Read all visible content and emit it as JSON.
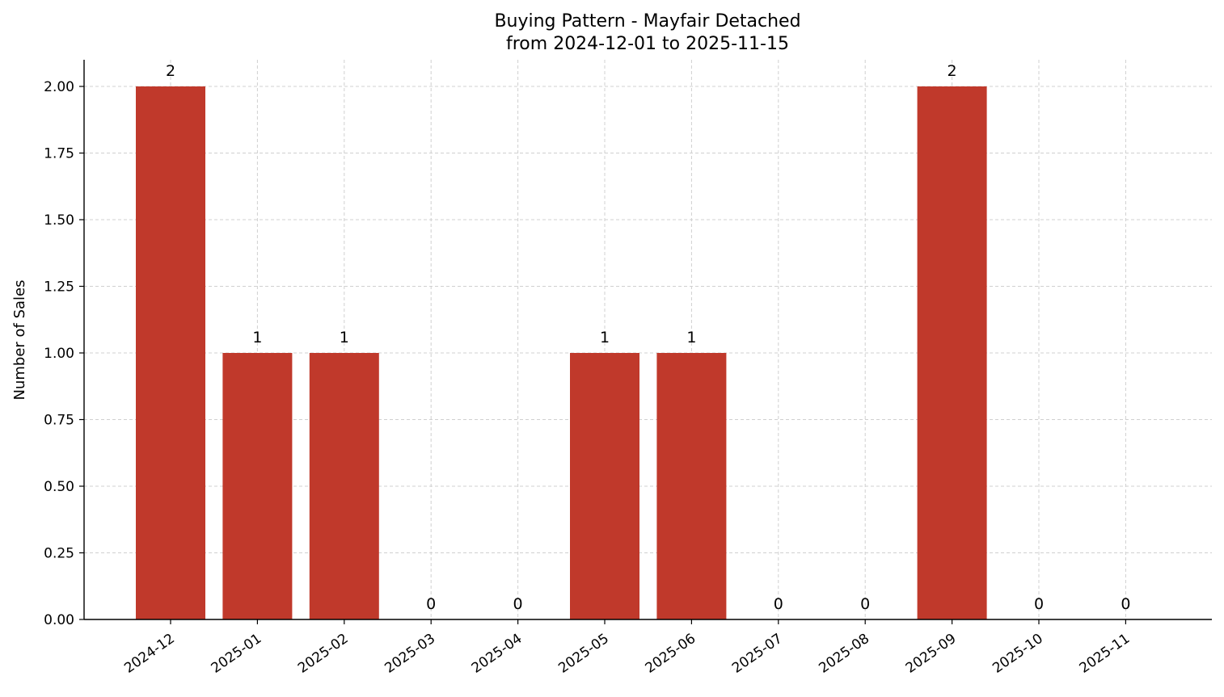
{
  "chart_data": {
    "type": "bar",
    "title": "Buying Pattern - Mayfair Detached",
    "subtitle": "from 2024-12-01 to 2025-11-15",
    "xlabel": "",
    "ylabel": "Number of Sales",
    "categories": [
      "2024-12",
      "2025-01",
      "2025-02",
      "2025-03",
      "2025-04",
      "2025-05",
      "2025-06",
      "2025-07",
      "2025-08",
      "2025-09",
      "2025-10",
      "2025-11"
    ],
    "values": [
      2,
      1,
      1,
      0,
      0,
      1,
      1,
      0,
      0,
      2,
      0,
      0
    ],
    "data_labels": [
      "2",
      "1",
      "1",
      "0",
      "0",
      "1",
      "1",
      "0",
      "0",
      "2",
      "0",
      "0"
    ],
    "y_ticks": [
      "0.00",
      "0.25",
      "0.50",
      "0.75",
      "1.00",
      "1.25",
      "1.50",
      "1.75",
      "2.00"
    ],
    "ylim": [
      0,
      2.1
    ],
    "grid": true,
    "bar_color": "#c0392b"
  }
}
